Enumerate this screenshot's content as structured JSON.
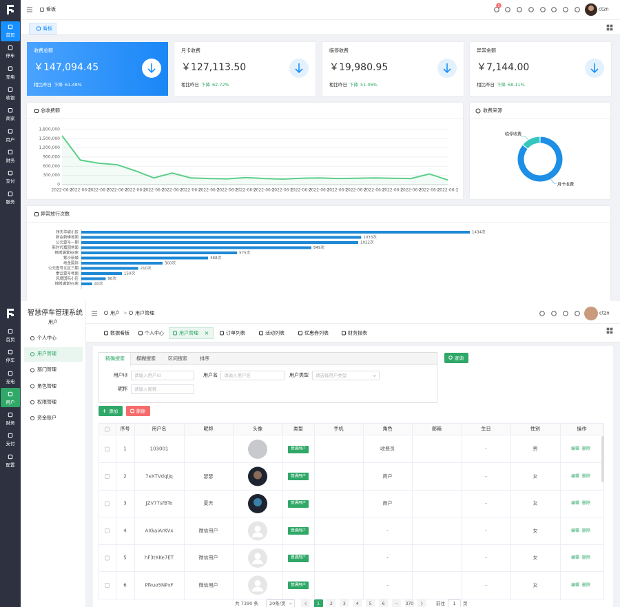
{
  "dashboard": {
    "nav": [
      "首页",
      "停车",
      "充电",
      "收银",
      "商家",
      "用户",
      "财务",
      "支付",
      "服务"
    ],
    "breadcrumb": "看板",
    "notification_count": 1,
    "user": "ctzn",
    "tab": "看板",
    "stats": [
      {
        "label": "收费总额",
        "amount": "￥147,094.45",
        "compare": "相比昨日",
        "trend": "下降",
        "percent": "61.49%"
      },
      {
        "label": "月卡收费",
        "amount": "￥127,113.50",
        "compare": "相比昨日",
        "trend": "下降",
        "percent": "62.72%"
      },
      {
        "label": "临停收费",
        "amount": "￥19,980.95",
        "compare": "相比昨日",
        "trend": "下降",
        "percent": "51.06%"
      },
      {
        "label": "异常金额",
        "amount": "￥7,144.00",
        "compare": "相比昨日",
        "trend": "下降",
        "percent": "68.11%"
      }
    ]
  },
  "chart_data": [
    {
      "type": "line",
      "title": "总收费额",
      "categories": [
        "2022-06-2",
        "2022-06-2",
        "2022-06-2",
        "2022-06-2",
        "2022-06-2",
        "2022-06-2",
        "2022-06-2",
        "2022-06-2",
        "2022-06-2",
        "2022-06-2",
        "2022-06-2",
        "2022-06-2",
        "2022-06-2",
        "2022-06-2",
        "2022-06-2",
        "2022-06-2",
        "2022-06-2",
        "2022-06-2",
        "2022-06-2",
        "2022-06-2",
        "2022-06-2",
        "2022-06-2"
      ],
      "series": [
        {
          "color": "#5ccf8a",
          "values": [
            1600000,
            800000,
            700000,
            650000,
            450000,
            220000,
            380000,
            220000,
            200000,
            190000,
            230000,
            200000,
            180000,
            210000,
            220000,
            200000,
            210000,
            220000,
            210000,
            200000,
            350000,
            150000
          ]
        }
      ],
      "ylim": [
        0,
        1800000
      ],
      "yticks": [
        0,
        {
          "value": 300000,
          "label": "300,000"
        },
        {
          "value": 600000,
          "label": "600,000"
        },
        {
          "value": 900000,
          "label": "900,000"
        },
        {
          "value": 1200000,
          "label": "1,200,000"
        },
        {
          "value": 1500000,
          "label": "1,500,000"
        },
        {
          "value": 1800000,
          "label": "1,800,000"
        }
      ],
      "grid": true
    },
    {
      "type": "pie",
      "title": "收费来源",
      "categories": [
        "临停收费",
        "月卡收费"
      ],
      "values": [
        14,
        86
      ],
      "colors": [
        "#36c6c0",
        "#1e8fe6"
      ],
      "donut": true
    },
    {
      "type": "bar",
      "orientation": "horizontal",
      "title": "异常放行次数",
      "categories": [
        "领天华城小区",
        "新会新峰地面",
        "公元壹号一期",
        "新时代嘉园地面",
        "锦绣满堂B8库",
        "紫沙新城",
        "地金国际",
        "公元壹号北区三期",
        "泰云壹号地面",
        "风度国际小区",
        "锦绣满堂55库"
      ],
      "values": [
        1434,
        1033,
        1022,
        849,
        575,
        468,
        300,
        210,
        150,
        90,
        40
      ],
      "value_labels": [
        "1434次",
        "1033次",
        "1022次",
        "849次",
        "575次",
        "468次",
        "300次",
        "210次",
        "150次",
        "90次",
        "40次"
      ],
      "color": "#1e88d4",
      "xlim": [
        0,
        1500
      ]
    }
  ],
  "user_page": {
    "nav": [
      "首页",
      "停车",
      "充电",
      "用户",
      "财务",
      "支付",
      "配置"
    ],
    "system_title": "智慧停车管理系统",
    "section": "用户",
    "menu": [
      "个人中心",
      "用户管理",
      "部门管理",
      "角色管理",
      "权限管理",
      "资金账户"
    ],
    "breadcrumb": [
      "用户",
      "用户管理"
    ],
    "breadcrumb_separator": ">",
    "user": "ctzn",
    "tabs": [
      "数据看板",
      "个人中心",
      "用户管理",
      "订单列表",
      "活动列表",
      "优惠券列表",
      "财务报表"
    ],
    "search_tabs": [
      "精确搜索",
      "模糊搜索",
      "区间搜索",
      "排序"
    ],
    "fields": [
      {
        "label": "用户id",
        "placeholder": "请输入用户id"
      },
      {
        "label": "用户名",
        "placeholder": "请输入用户名"
      },
      {
        "label": "用户类型",
        "placeholder": "请选择用户类型"
      },
      {
        "label": "昵称",
        "placeholder": "请输入昵称"
      }
    ],
    "query_button": "查询",
    "add_button": "添加",
    "delete_button": "删除",
    "table": {
      "columns": [
        "序号",
        "用户名",
        "昵称",
        "头像",
        "类型",
        "手机",
        "角色",
        "邮箱",
        "生日",
        "性别",
        "操作"
      ],
      "rows": [
        [
          1,
          "103001",
          null,
          null,
          "普通用户",
          null,
          "收费员",
          null,
          "-",
          "男"
        ],
        [
          2,
          "7eXTVdqljq",
          "瑟瑟",
          null,
          "普通用户",
          null,
          "商户",
          null,
          "-",
          "女"
        ],
        [
          3,
          "JZV77sfBTo",
          "夏天",
          null,
          "普通用户",
          null,
          "商户",
          null,
          "-",
          "女"
        ],
        [
          4,
          "AXkaiArKVx",
          "微信用户",
          null,
          "普通用户",
          null,
          "-",
          null,
          "-",
          "女"
        ],
        [
          5,
          "hF3tXKe7ET",
          "微信用户",
          null,
          "普通用户",
          null,
          "-",
          null,
          "-",
          "女"
        ],
        [
          6,
          "Pfkuo5NPxF",
          "微信用户",
          null,
          "普通用户",
          null,
          "-",
          null,
          "-",
          "女"
        ]
      ],
      "actions": [
        "编辑",
        "删除"
      ]
    },
    "pagination": {
      "total": "共 7390 条",
      "page_size": "20条/页",
      "pages": [
        1,
        2,
        3,
        4,
        5,
        6,
        "···",
        370
      ],
      "goto": "前往",
      "current": 1,
      "page_unit": "页"
    }
  }
}
